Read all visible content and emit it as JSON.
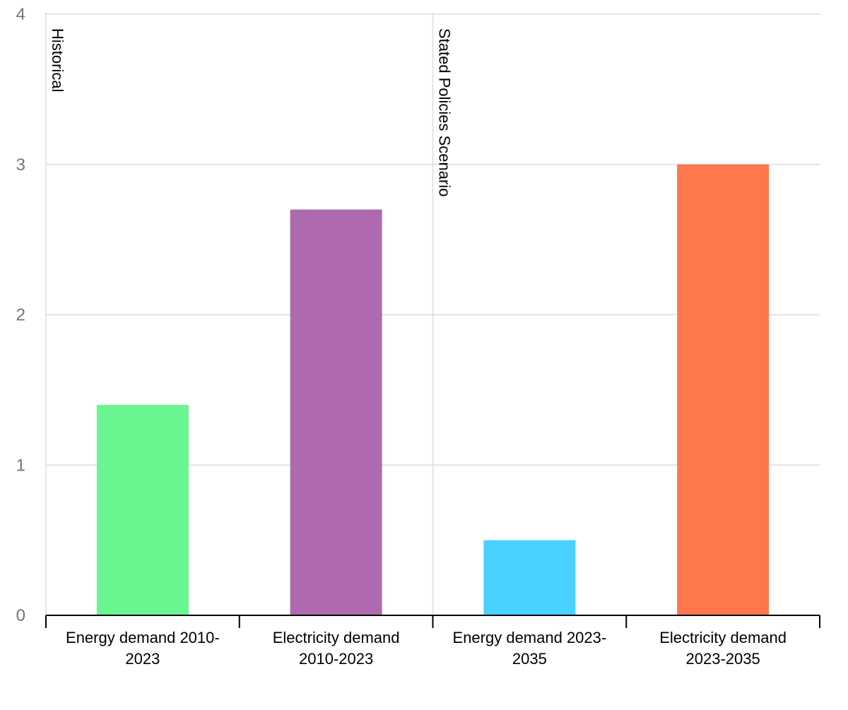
{
  "chart_data": {
    "type": "bar",
    "categories": [
      "Energy demand 2010-2023",
      "Electricity demand 2010-2023",
      "Energy demand 2023-2035",
      "Electricity demand 2023-2035"
    ],
    "category_label_lines": [
      [
        "Energy demand 2010-",
        "2023"
      ],
      [
        "Electricity demand",
        "2010-2023"
      ],
      [
        "Energy demand 2023-",
        "2035"
      ],
      [
        "Electricity demand",
        "2023-2035"
      ]
    ],
    "values": [
      1.4,
      2.7,
      0.5,
      3.0
    ],
    "colors": [
      "#69f590",
      "#af6aaf",
      "#49d2ff",
      "#ff774d"
    ],
    "ylim": [
      0,
      4
    ],
    "yticks": [
      0,
      1,
      2,
      3,
      4
    ],
    "grid": true,
    "sections": [
      {
        "label": "Historical",
        "start_index": 0
      },
      {
        "label": "Stated Policies Scenario",
        "start_index": 2
      }
    ],
    "title": "",
    "xlabel": "",
    "ylabel": ""
  }
}
